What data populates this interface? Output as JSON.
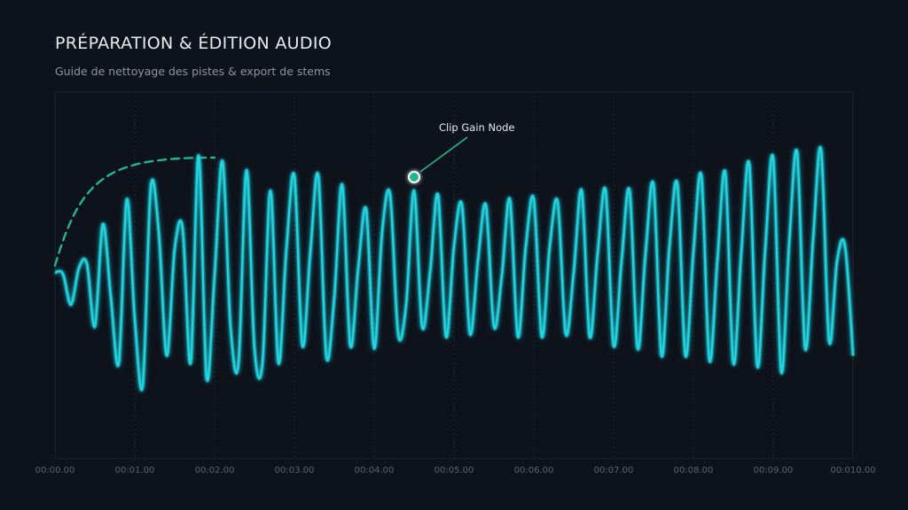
{
  "header": {
    "title": "PRÉPARATION & ÉDITION AUDIO",
    "subtitle": "Guide de nettoyage des pistes & export de stems"
  },
  "annotation": {
    "label": "Clip Gain Node",
    "time": 4.5,
    "level": 0.72
  },
  "fade_in": {
    "start_time": 0.0,
    "end_time": 2.0,
    "style": "dashed"
  },
  "colors": {
    "background": "#0d121b",
    "waveform": "#22d3e0",
    "waveform_glow": "#22d3e0",
    "fade_curve": "#23b58d",
    "annotation": "#23b58d",
    "grid": "#1f2633",
    "tick_label": "#5d6470"
  },
  "chart_data": {
    "type": "line",
    "xlabel": "",
    "ylabel": "",
    "x_ticks": [
      "00:00.00",
      "00:01.00",
      "00:02.00",
      "00:03.00",
      "00:04.00",
      "00:05.00",
      "00:06.00",
      "00:07.00",
      "00:08.00",
      "00:09.00",
      "00:010.00"
    ],
    "xlim": [
      0,
      10
    ],
    "ylim": [
      -1,
      1
    ],
    "grid": "vertical-dotted",
    "series": [
      {
        "x": [
          0.0,
          0.1,
          0.2,
          0.3,
          0.4,
          0.5,
          0.6,
          0.7,
          0.8,
          0.9,
          1.0,
          1.1,
          1.2,
          1.3,
          1.4,
          1.5,
          1.6,
          1.7,
          1.8,
          1.9,
          2.0,
          2.1,
          2.2,
          2.3,
          2.4,
          2.5,
          2.6,
          2.7,
          2.8,
          2.9,
          3.0,
          3.1,
          3.2,
          3.3,
          3.4,
          3.5,
          3.6,
          3.7,
          3.8,
          3.9,
          4.0,
          4.1,
          4.2,
          4.3,
          4.4,
          4.5,
          4.6,
          4.7,
          4.8,
          4.9,
          5.0,
          5.1,
          5.2,
          5.3,
          5.4,
          5.5,
          5.6,
          5.7,
          5.8,
          5.9,
          6.0,
          6.1,
          6.2,
          6.3,
          6.4,
          6.5,
          6.6,
          6.7,
          6.8,
          6.9,
          7.0,
          7.1,
          7.2,
          7.3,
          7.4,
          7.5,
          7.6,
          7.7,
          7.8,
          7.9,
          8.0,
          8.1,
          8.2,
          8.3,
          8.4,
          8.5,
          8.6,
          8.7,
          8.8,
          8.9,
          9.0,
          9.1,
          9.2,
          9.3,
          9.4,
          9.5,
          9.6,
          9.7,
          9.8,
          9.9,
          10.0
        ],
        "values": [
          0.02,
          0.01,
          -0.2,
          0.05,
          0.08,
          -0.35,
          0.35,
          -0.15,
          -0.6,
          0.52,
          -0.3,
          -0.75,
          0.6,
          0.3,
          -0.55,
          0.18,
          0.32,
          -0.6,
          0.82,
          -0.7,
          0.0,
          0.78,
          -0.35,
          -0.6,
          0.72,
          -0.5,
          -0.6,
          0.58,
          -0.6,
          0.18,
          0.68,
          -0.48,
          0.16,
          0.68,
          -0.55,
          -0.15,
          0.62,
          -0.48,
          0.05,
          0.45,
          -0.5,
          0.3,
          0.55,
          -0.4,
          -0.2,
          0.58,
          -0.35,
          0.02,
          0.55,
          -0.42,
          0.2,
          0.48,
          -0.4,
          0.1,
          0.48,
          -0.35,
          0.0,
          0.52,
          -0.42,
          0.2,
          0.52,
          -0.42,
          0.2,
          0.5,
          -0.4,
          0.02,
          0.58,
          -0.42,
          0.15,
          0.58,
          -0.48,
          0.1,
          0.58,
          -0.5,
          0.15,
          0.62,
          -0.55,
          0.2,
          0.62,
          -0.55,
          0.16,
          0.68,
          -0.58,
          0.1,
          0.7,
          -0.6,
          0.16,
          0.76,
          -0.62,
          0.18,
          0.8,
          -0.66,
          0.22,
          0.84,
          -0.5,
          0.25,
          0.86,
          -0.45,
          0.1,
          0.2,
          -0.55
        ]
      }
    ]
  }
}
